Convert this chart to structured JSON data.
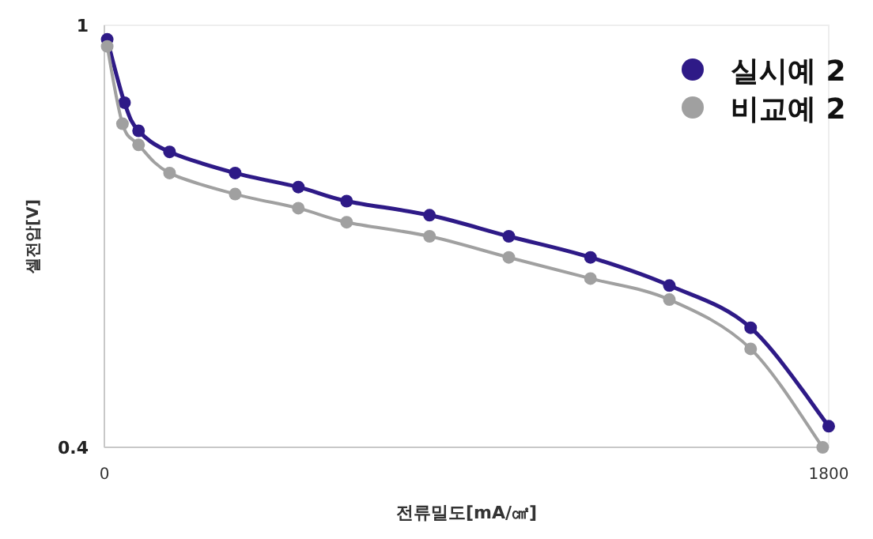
{
  "chart_data": {
    "type": "line",
    "xlabel": "전류밀도[mA/㎠]",
    "ylabel": "셀전압[V]",
    "xlim": [
      0,
      1800
    ],
    "xticks": [
      0,
      1800
    ],
    "ylim": [
      0.4,
      1
    ],
    "yticks": [
      0.4,
      1
    ],
    "legend": "top right",
    "marker": "circle",
    "line_style": "solid",
    "series": [
      {
        "name": "실시예 2",
        "color": "#2e1a87",
        "x": [
          7,
          50,
          85,
          162,
          325,
          482,
          602,
          808,
          1005,
          1208,
          1404,
          1606,
          1800
        ],
        "values": [
          0.98,
          0.89,
          0.85,
          0.82,
          0.79,
          0.77,
          0.75,
          0.73,
          0.7,
          0.67,
          0.63,
          0.57,
          0.43
        ]
      },
      {
        "name": "비교예 2",
        "color": "#a0a0a0",
        "x": [
          7,
          45,
          85,
          162,
          325,
          482,
          602,
          808,
          1005,
          1208,
          1404,
          1606,
          1785
        ],
        "values": [
          0.97,
          0.86,
          0.83,
          0.79,
          0.76,
          0.74,
          0.72,
          0.7,
          0.67,
          0.64,
          0.61,
          0.54,
          0.4
        ]
      }
    ]
  }
}
